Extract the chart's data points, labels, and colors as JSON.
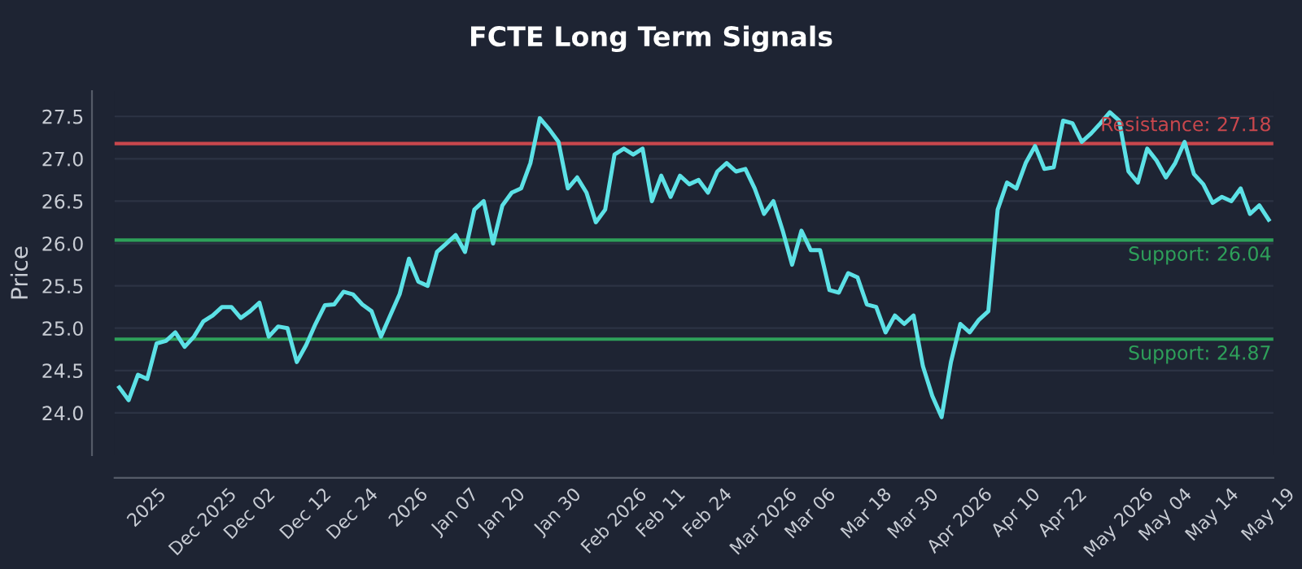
{
  "chart_data": {
    "type": "line",
    "title": "FCTE Long Term Signals",
    "ylabel": "Price",
    "categories": [
      null,
      null,
      null,
      "2025",
      null,
      null,
      null,
      null,
      null,
      "Dec 2025",
      null,
      null,
      null,
      null,
      "Dec 02",
      null,
      null,
      null,
      null,
      null,
      "Dec 12",
      null,
      null,
      null,
      null,
      "Dec 24",
      null,
      null,
      null,
      null,
      null,
      "2026",
      null,
      null,
      null,
      null,
      "Jan 07",
      null,
      null,
      null,
      null,
      "Jan 20",
      null,
      null,
      null,
      null,
      null,
      "Jan 30",
      null,
      null,
      null,
      null,
      null,
      "Feb 2026",
      null,
      null,
      null,
      null,
      "Feb 11",
      null,
      null,
      null,
      null,
      "Feb 24",
      null,
      null,
      null,
      null,
      null,
      "Mar 2026",
      null,
      null,
      null,
      null,
      "Mar 06",
      null,
      null,
      null,
      null,
      null,
      "Mar 18",
      null,
      null,
      null,
      null,
      "Mar 30",
      null,
      null,
      null,
      null,
      "Apr 2026",
      null,
      null,
      null,
      null,
      null,
      "Apr 10",
      null,
      null,
      null,
      null,
      "Apr 22",
      null,
      null,
      null,
      null,
      null,
      "May 2026",
      null,
      null,
      null,
      null,
      "May 04",
      null,
      null,
      null,
      null,
      "May 14",
      null,
      null,
      null,
      null,
      null,
      "May 19"
    ],
    "series": [
      {
        "color": "#5ce1e6",
        "values": [
          24.3,
          24.15,
          24.45,
          24.4,
          24.82,
          24.85,
          24.95,
          24.78,
          24.9,
          25.08,
          25.15,
          25.25,
          25.25,
          25.12,
          25.2,
          25.3,
          24.9,
          25.02,
          25.0,
          24.6,
          24.8,
          25.05,
          25.27,
          25.28,
          25.43,
          25.4,
          25.28,
          25.2,
          24.9,
          25.15,
          25.4,
          25.82,
          25.55,
          25.5,
          25.9,
          26.0,
          26.1,
          25.9,
          26.4,
          26.5,
          26.0,
          26.45,
          26.6,
          26.65,
          26.95,
          27.48,
          27.35,
          27.2,
          26.65,
          26.78,
          26.6,
          26.25,
          26.4,
          27.05,
          27.12,
          27.05,
          27.12,
          26.5,
          26.8,
          26.55,
          26.8,
          26.7,
          26.75,
          26.6,
          26.85,
          26.95,
          26.85,
          26.88,
          26.65,
          26.35,
          26.5,
          26.15,
          25.75,
          26.15,
          25.92,
          25.92,
          25.45,
          25.42,
          25.65,
          25.6,
          25.28,
          25.25,
          24.95,
          25.15,
          25.05,
          25.15,
          24.55,
          24.2,
          23.95,
          24.6,
          25.05,
          24.95,
          25.1,
          25.2,
          26.4,
          26.72,
          26.65,
          26.95,
          27.15,
          26.88,
          26.9,
          27.45,
          27.42,
          27.2,
          27.3,
          27.42,
          27.55,
          27.45,
          26.85,
          26.72,
          27.12,
          26.98,
          26.78,
          26.95,
          27.2,
          26.82,
          26.7,
          26.48,
          26.55,
          26.5,
          26.65,
          26.35,
          26.45,
          26.28
        ]
      }
    ],
    "ylim": [
      23.5,
      27.8
    ],
    "yticks": [
      {
        "value": 24,
        "label": "24.0"
      },
      24.5,
      {
        "value": 25,
        "label": "25.0"
      },
      25.5,
      {
        "value": 26,
        "label": "26.0"
      },
      26.5,
      {
        "value": 27,
        "label": "27.0"
      },
      27.5
    ],
    "grid": "y",
    "ref_lines": [
      {
        "axis": "y",
        "value": 27.18,
        "label": "Resistance: 27.18",
        "color": "#c9474d"
      },
      {
        "axis": "y",
        "value": 26.04,
        "label": "Support: 26.04",
        "color": "#2ea05a"
      },
      {
        "axis": "y",
        "value": 24.87,
        "label": "Support: 24.87",
        "color": "#2ea05a"
      }
    ]
  }
}
